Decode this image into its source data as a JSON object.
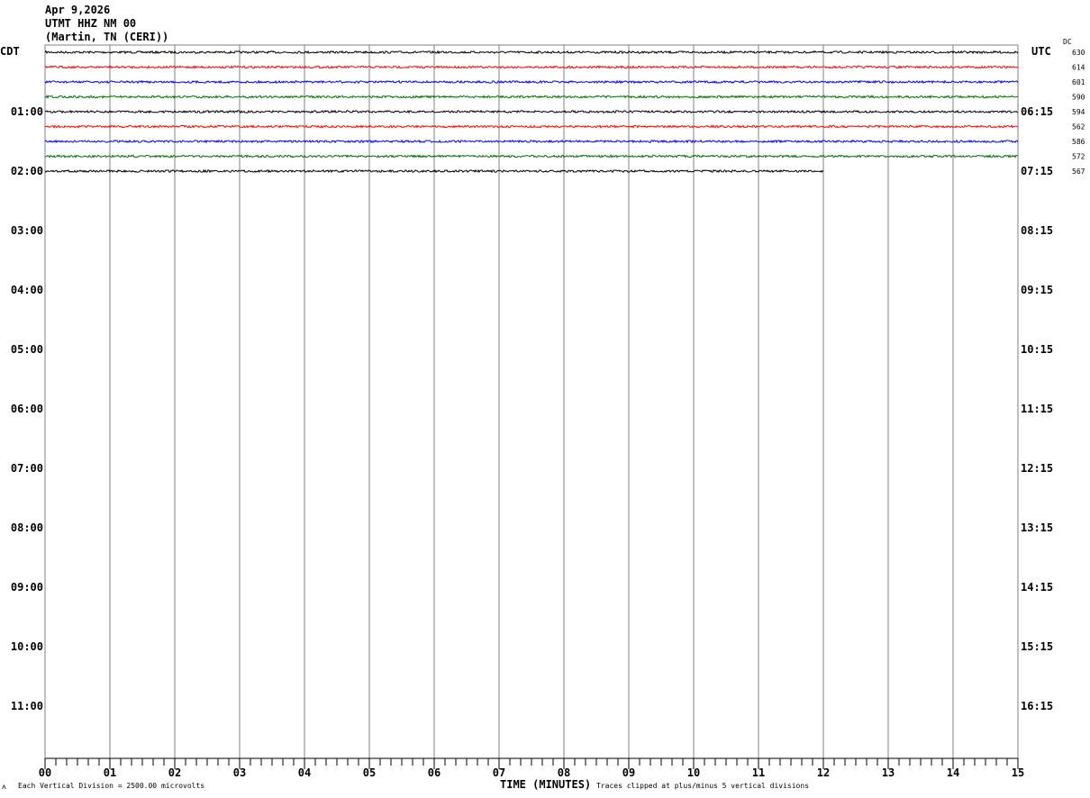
{
  "header": {
    "date": "Apr 9,2026",
    "station": "UTMT HHZ NM 00",
    "location": "(Martin, TN (CERI))"
  },
  "left_tz": "CDT",
  "right_tz": "UTC",
  "dc_label": "DC",
  "chart_data": {
    "type": "line",
    "title": "",
    "xlabel": "TIME (MINUTES)",
    "xlim": [
      0,
      15
    ],
    "x_ticks": [
      "00",
      "01",
      "02",
      "03",
      "04",
      "05",
      "06",
      "07",
      "08",
      "09",
      "10",
      "11",
      "12",
      "13",
      "14",
      "15"
    ],
    "left_hour_labels": [
      "01:00",
      "02:00",
      "03:00",
      "04:00",
      "05:00",
      "06:00",
      "07:00",
      "08:00",
      "09:00",
      "10:00",
      "11:00"
    ],
    "right_hour_labels": [
      "06:15",
      "07:15",
      "08:15",
      "09:15",
      "10:15",
      "11:15",
      "12:15",
      "13:15",
      "14:15",
      "15:15",
      "16:15"
    ],
    "trace_colors": [
      "#000000",
      "#ff0000",
      "#0000ff",
      "#007000"
    ],
    "traces": [
      {
        "dc": "630",
        "end_minute": 15
      },
      {
        "dc": "614",
        "end_minute": 15
      },
      {
        "dc": "601",
        "end_minute": 15
      },
      {
        "dc": "590",
        "end_minute": 15
      },
      {
        "dc": "594",
        "end_minute": 15
      },
      {
        "dc": "562",
        "end_minute": 15
      },
      {
        "dc": "586",
        "end_minute": 15
      },
      {
        "dc": "572",
        "end_minute": 15
      },
      {
        "dc": "567",
        "end_minute": 12
      }
    ],
    "grid": true
  },
  "footer": {
    "scale": "Each Vertical Division = 2500.00 microvolts",
    "clip": "Traces clipped at plus/minus 5 vertical divisions",
    "mark": "ʌ"
  }
}
